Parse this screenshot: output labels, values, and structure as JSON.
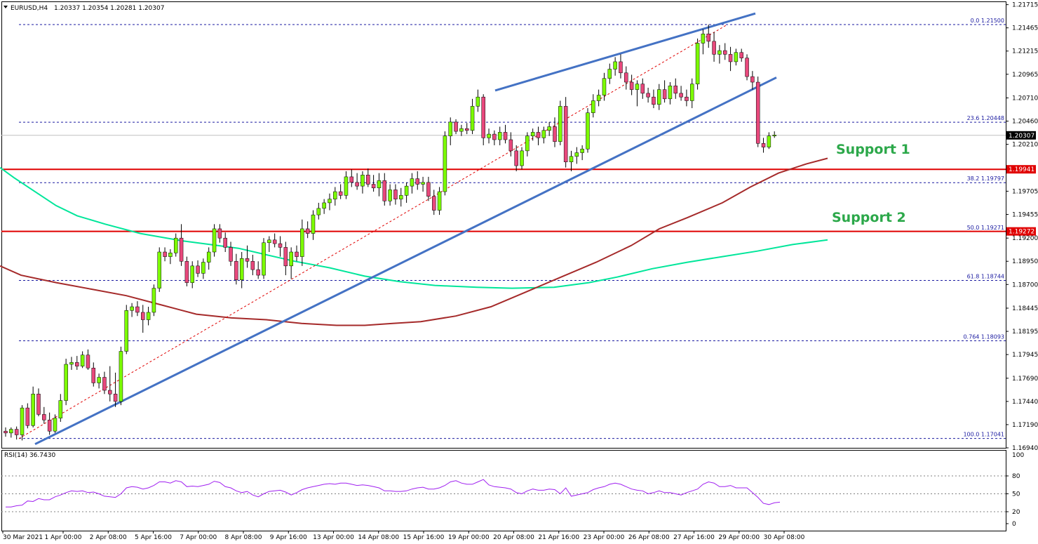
{
  "header": {
    "symbol": "EURUSD,H4",
    "ohlc": "1.20337 1.20354 1.20281 1.20307"
  },
  "rsi": {
    "label": "RSI(14) 36.7430",
    "levels": [
      80,
      50,
      20
    ],
    "axis_ticks": [
      "80",
      "50",
      "20",
      "0"
    ],
    "axis_top": "100"
  },
  "colors": {
    "bull": "#7cfc00",
    "bear": "#e8487c",
    "wick": "#000000",
    "trendline": "#4472c4",
    "sma_fast": "#00e69a",
    "sma_slow": "#a52a2a",
    "hline": "#e00000",
    "fib_line": "#1a1aa0",
    "rsi_line": "#a020f0"
  },
  "annotations": {
    "support1": "Support 1",
    "support2": "Support 2"
  },
  "chart_data": {
    "type": "candlestick",
    "instrument": "EURUSD",
    "timeframe": "H4",
    "ylim": [
      1.1694,
      1.2175
    ],
    "price_ticks": [
      "1.21715",
      "1.21465",
      "1.21215",
      "1.20965",
      "1.20710",
      "1.20460",
      "1.20210",
      "1.19705",
      "1.19455",
      "1.19200",
      "1.18950",
      "1.18700",
      "1.18445",
      "1.18195",
      "1.17945",
      "1.17690",
      "1.17440",
      "1.17190",
      "1.16940"
    ],
    "x_labels": [
      "30 Mar 2021",
      "1 Apr 00:00",
      "2 Apr 08:00",
      "5 Apr 16:00",
      "7 Apr 00:00",
      "8 Apr 08:00",
      "9 Apr 16:00",
      "13 Apr 00:00",
      "14 Apr 08:00",
      "15 Apr 16:00",
      "19 Apr 00:00",
      "20 Apr 08:00",
      "21 Apr 16:00",
      "23 Apr 00:00",
      "26 Apr 08:00",
      "27 Apr 16:00",
      "29 Apr 00:00",
      "30 Apr 08:00"
    ],
    "current_price": "1.20307",
    "horizontal_levels": [
      {
        "price": 1.19941,
        "label": "1.19941"
      },
      {
        "price": 1.19272,
        "label": "1.19272"
      }
    ],
    "fibonacci": [
      {
        "level": "0.0",
        "price": 1.215,
        "label": "0.0 1.21500"
      },
      {
        "level": "23.6",
        "price": 1.20448,
        "label": "23.6 1.20448"
      },
      {
        "level": "38.2",
        "price": 1.19797,
        "label": "38.2 1.19797"
      },
      {
        "level": "50.0",
        "price": 1.19271,
        "label": "50.0 1.19271"
      },
      {
        "level": "61.8",
        "price": 1.18744,
        "label": "61.8 1.18744"
      },
      {
        "level": "76.4",
        "price": 1.18093,
        "label": "0.764 1.18093"
      },
      {
        "level": "100.0",
        "price": 1.17041,
        "label": "100.0 1.17041"
      }
    ],
    "candles": [
      [
        1.1712,
        1.1716,
        1.1706,
        1.171
      ],
      [
        1.171,
        1.1716,
        1.1705,
        1.1714
      ],
      [
        1.1714,
        1.1717,
        1.1703,
        1.1708
      ],
      [
        1.1708,
        1.174,
        1.1702,
        1.1737
      ],
      [
        1.1737,
        1.1742,
        1.1715,
        1.1718
      ],
      [
        1.1718,
        1.176,
        1.1716,
        1.1752
      ],
      [
        1.1752,
        1.1758,
        1.1728,
        1.173
      ],
      [
        1.173,
        1.1738,
        1.172,
        1.1724
      ],
      [
        1.1724,
        1.1732,
        1.1708,
        1.1712
      ],
      [
        1.1712,
        1.173,
        1.171,
        1.1726
      ],
      [
        1.1726,
        1.1752,
        1.1722,
        1.1745
      ],
      [
        1.1745,
        1.179,
        1.174,
        1.1784
      ],
      [
        1.1784,
        1.1792,
        1.1778,
        1.1786
      ],
      [
        1.1786,
        1.1793,
        1.1778,
        1.1782
      ],
      [
        1.1782,
        1.1798,
        1.178,
        1.1794
      ],
      [
        1.1794,
        1.18,
        1.1778,
        1.178
      ],
      [
        1.178,
        1.1786,
        1.176,
        1.1764
      ],
      [
        1.1764,
        1.1774,
        1.1758,
        1.177
      ],
      [
        1.177,
        1.1776,
        1.1752,
        1.1756
      ],
      [
        1.1756,
        1.1782,
        1.1744,
        1.1752
      ],
      [
        1.1752,
        1.1775,
        1.1738,
        1.1744
      ],
      [
        1.1744,
        1.1803,
        1.174,
        1.1798
      ],
      [
        1.1798,
        1.1848,
        1.1795,
        1.1842
      ],
      [
        1.1842,
        1.185,
        1.1835,
        1.1846
      ],
      [
        1.1846,
        1.1852,
        1.1836,
        1.184
      ],
      [
        1.184,
        1.1848,
        1.1818,
        1.1832
      ],
      [
        1.1832,
        1.1846,
        1.1826,
        1.184
      ],
      [
        1.184,
        1.187,
        1.1836,
        1.1866
      ],
      [
        1.1866,
        1.191,
        1.1862,
        1.1905
      ],
      [
        1.1905,
        1.191,
        1.1895,
        1.19
      ],
      [
        1.19,
        1.1908,
        1.1892,
        1.1904
      ],
      [
        1.1904,
        1.1925,
        1.19,
        1.192
      ],
      [
        1.192,
        1.1935,
        1.189,
        1.1895
      ],
      [
        1.1895,
        1.19,
        1.1868,
        1.1872
      ],
      [
        1.1872,
        1.1895,
        1.1866,
        1.189
      ],
      [
        1.189,
        1.1896,
        1.1878,
        1.1882
      ],
      [
        1.1882,
        1.1898,
        1.1876,
        1.1894
      ],
      [
        1.1894,
        1.191,
        1.1886,
        1.1905
      ],
      [
        1.1905,
        1.1935,
        1.19,
        1.193
      ],
      [
        1.193,
        1.1935,
        1.1915,
        1.192
      ],
      [
        1.192,
        1.1926,
        1.1905,
        1.191
      ],
      [
        1.191,
        1.1916,
        1.189,
        1.1895
      ],
      [
        1.1895,
        1.1903,
        1.187,
        1.1875
      ],
      [
        1.1875,
        1.1905,
        1.1866,
        1.1898
      ],
      [
        1.1898,
        1.1912,
        1.1888,
        1.1895
      ],
      [
        1.1895,
        1.1902,
        1.188,
        1.1886
      ],
      [
        1.1886,
        1.1895,
        1.1876,
        1.188
      ],
      [
        1.188,
        1.192,
        1.1876,
        1.1915
      ],
      [
        1.1915,
        1.1922,
        1.1905,
        1.1918
      ],
      [
        1.1918,
        1.1925,
        1.191,
        1.1914
      ],
      [
        1.1914,
        1.1922,
        1.19,
        1.191
      ],
      [
        1.191,
        1.1916,
        1.188,
        1.189
      ],
      [
        1.189,
        1.191,
        1.1876,
        1.1905
      ],
      [
        1.1905,
        1.1912,
        1.1895,
        1.19
      ],
      [
        1.19,
        1.194,
        1.189,
        1.193
      ],
      [
        1.193,
        1.1938,
        1.192,
        1.1925
      ],
      [
        1.1925,
        1.195,
        1.1918,
        1.1945
      ],
      [
        1.1945,
        1.1958,
        1.194,
        1.1952
      ],
      [
        1.1952,
        1.1962,
        1.1946,
        1.1958
      ],
      [
        1.1958,
        1.1968,
        1.195,
        1.1962
      ],
      [
        1.1962,
        1.1975,
        1.1955,
        1.197
      ],
      [
        1.197,
        1.1978,
        1.1962,
        1.1966
      ],
      [
        1.1966,
        1.1992,
        1.1962,
        1.1986
      ],
      [
        1.1986,
        1.1994,
        1.1975,
        1.198
      ],
      [
        1.198,
        1.199,
        1.1972,
        1.1976
      ],
      [
        1.1976,
        1.1992,
        1.1968,
        1.1988
      ],
      [
        1.1988,
        1.1995,
        1.1975,
        1.1978
      ],
      [
        1.1978,
        1.1988,
        1.197,
        1.1974
      ],
      [
        1.1974,
        1.199,
        1.1965,
        1.1982
      ],
      [
        1.1982,
        1.199,
        1.1955,
        1.196
      ],
      [
        1.196,
        1.1978,
        1.1955,
        1.1972
      ],
      [
        1.1972,
        1.1978,
        1.1956,
        1.1962
      ],
      [
        1.1962,
        1.1974,
        1.1954,
        1.1966
      ],
      [
        1.1966,
        1.198,
        1.1958,
        1.1976
      ],
      [
        1.1976,
        1.199,
        1.1968,
        1.1984
      ],
      [
        1.1984,
        1.1992,
        1.1972,
        1.1978
      ],
      [
        1.1978,
        1.1986,
        1.197,
        1.198
      ],
      [
        1.198,
        1.1986,
        1.196,
        1.1965
      ],
      [
        1.1965,
        1.1972,
        1.1945,
        1.195
      ],
      [
        1.195,
        1.1975,
        1.1945,
        1.197
      ],
      [
        1.197,
        1.2035,
        1.1966,
        1.203
      ],
      [
        1.203,
        1.205,
        1.202,
        1.2045
      ],
      [
        1.2045,
        1.2048,
        1.2032,
        1.2035
      ],
      [
        1.2035,
        1.2042,
        1.203,
        1.2038
      ],
      [
        1.2038,
        1.2044,
        1.2032,
        1.2036
      ],
      [
        1.2036,
        1.207,
        1.2032,
        1.2062
      ],
      [
        1.2062,
        1.208,
        1.2056,
        1.2072
      ],
      [
        1.2072,
        1.2075,
        1.202,
        1.2028
      ],
      [
        1.2028,
        1.2038,
        1.2022,
        1.2032
      ],
      [
        1.2032,
        1.2036,
        1.202,
        1.2026
      ],
      [
        1.2026,
        1.204,
        1.202,
        1.2034
      ],
      [
        1.2034,
        1.2042,
        1.2022,
        1.2026
      ],
      [
        1.2026,
        1.2034,
        1.2008,
        1.2014
      ],
      [
        1.2014,
        1.202,
        1.1992,
        1.1998
      ],
      [
        1.1998,
        1.2018,
        1.1994,
        1.2014
      ],
      [
        1.2014,
        1.2034,
        1.2008,
        1.203
      ],
      [
        1.203,
        1.2038,
        1.2025,
        1.2034
      ],
      [
        1.2034,
        1.204,
        1.202,
        1.2028
      ],
      [
        1.2028,
        1.204,
        1.2022,
        1.2036
      ],
      [
        1.2036,
        1.2045,
        1.203,
        1.204
      ],
      [
        1.204,
        1.205,
        1.2018,
        1.2024
      ],
      [
        1.2024,
        1.2068,
        1.202,
        1.2062
      ],
      [
        1.2062,
        1.2072,
        1.1996,
        1.2002
      ],
      [
        1.2002,
        1.2014,
        1.1992,
        1.2008
      ],
      [
        1.2008,
        1.2018,
        1.2,
        1.2012
      ],
      [
        1.2012,
        1.202,
        1.2004,
        1.2016
      ],
      [
        1.2016,
        1.206,
        1.2012,
        1.2055
      ],
      [
        1.2055,
        1.2075,
        1.205,
        1.2068
      ],
      [
        1.2068,
        1.208,
        1.2062,
        1.2074
      ],
      [
        1.2074,
        1.2098,
        1.2068,
        1.2092
      ],
      [
        1.2092,
        1.2108,
        1.2086,
        1.2102
      ],
      [
        1.2102,
        1.2115,
        1.2095,
        1.211
      ],
      [
        1.211,
        1.2118,
        1.2092,
        1.2098
      ],
      [
        1.2098,
        1.2105,
        1.208,
        1.2088
      ],
      [
        1.2088,
        1.2096,
        1.2074,
        1.208
      ],
      [
        1.208,
        1.209,
        1.2062,
        1.2086
      ],
      [
        1.2086,
        1.2092,
        1.207,
        1.2076
      ],
      [
        1.2076,
        1.2082,
        1.2066,
        1.2072
      ],
      [
        1.2072,
        1.208,
        1.206,
        1.2064
      ],
      [
        1.2064,
        1.2086,
        1.2058,
        1.208
      ],
      [
        1.208,
        1.209,
        1.2066,
        1.207
      ],
      [
        1.207,
        1.2088,
        1.2064,
        1.2084
      ],
      [
        1.2084,
        1.2092,
        1.207,
        1.2076
      ],
      [
        1.2076,
        1.2084,
        1.2068,
        1.2072
      ],
      [
        1.2072,
        1.208,
        1.2062,
        1.2068
      ],
      [
        1.2068,
        1.2092,
        1.206,
        1.2086
      ],
      [
        1.2086,
        1.2135,
        1.208,
        1.213
      ],
      [
        1.213,
        1.2145,
        1.2118,
        1.214
      ],
      [
        1.214,
        1.215,
        1.2125,
        1.2132
      ],
      [
        1.2132,
        1.2142,
        1.211,
        1.2118
      ],
      [
        1.2118,
        1.2128,
        1.2108,
        1.2122
      ],
      [
        1.2122,
        1.213,
        1.2112,
        1.2118
      ],
      [
        1.2118,
        1.2126,
        1.21,
        1.211
      ],
      [
        1.211,
        1.2124,
        1.2106,
        1.212
      ],
      [
        1.212,
        1.2124,
        1.211,
        1.2114
      ],
      [
        1.2114,
        1.2118,
        1.209,
        1.2094
      ],
      [
        1.2094,
        1.21,
        1.208,
        1.2088
      ],
      [
        1.2088,
        1.2094,
        1.2018,
        1.2022
      ],
      [
        1.2022,
        1.2028,
        1.2012,
        1.2018
      ],
      [
        1.2018,
        1.2034,
        1.2016,
        1.203
      ],
      [
        1.203,
        1.2035,
        1.2028,
        1.2031
      ]
    ],
    "sma_fast_points": [
      [
        0,
        1.1996
      ],
      [
        20,
        1.1985
      ],
      [
        50,
        1.197
      ],
      [
        80,
        1.1955
      ],
      [
        110,
        1.1944
      ],
      [
        150,
        1.1935
      ],
      [
        200,
        1.1925
      ],
      [
        260,
        1.1917
      ],
      [
        300,
        1.1913
      ],
      [
        340,
        1.1909
      ],
      [
        380,
        1.1902
      ],
      [
        420,
        1.1895
      ],
      [
        470,
        1.1888
      ],
      [
        520,
        1.1879
      ],
      [
        570,
        1.1873
      ],
      [
        620,
        1.1869
      ],
      [
        680,
        1.1867
      ],
      [
        730,
        1.1866
      ],
      [
        790,
        1.1867
      ],
      [
        840,
        1.1872
      ],
      [
        880,
        1.1878
      ],
      [
        930,
        1.1887
      ],
      [
        980,
        1.1894
      ],
      [
        1030,
        1.19
      ],
      [
        1080,
        1.1906
      ],
      [
        1130,
        1.1913
      ],
      [
        1180,
        1.1918
      ]
    ],
    "sma_slow_points": [
      [
        0,
        1.189
      ],
      [
        30,
        1.188
      ],
      [
        80,
        1.1872
      ],
      [
        130,
        1.1865
      ],
      [
        180,
        1.1858
      ],
      [
        230,
        1.1848
      ],
      [
        280,
        1.1838
      ],
      [
        330,
        1.1834
      ],
      [
        380,
        1.1832
      ],
      [
        430,
        1.1828
      ],
      [
        480,
        1.1826
      ],
      [
        520,
        1.1826
      ],
      [
        560,
        1.1828
      ],
      [
        600,
        1.183
      ],
      [
        650,
        1.1836
      ],
      [
        700,
        1.1846
      ],
      [
        750,
        1.1862
      ],
      [
        800,
        1.1878
      ],
      [
        850,
        1.1894
      ],
      [
        900,
        1.1912
      ],
      [
        940,
        1.193
      ],
      [
        980,
        1.1942
      ],
      [
        1030,
        1.1958
      ],
      [
        1070,
        1.1975
      ],
      [
        1110,
        1.199
      ],
      [
        1150,
        1.2
      ],
      [
        1180,
        1.2006
      ]
    ],
    "trendlines": [
      {
        "name": "lower-support-trendline",
        "points": [
          [
            50,
            1.1698
          ],
          [
            1107,
            1.2093
          ]
        ]
      },
      {
        "name": "upper-channel-trendline",
        "points": [
          [
            706,
            1.2079
          ],
          [
            1077,
            1.2162
          ]
        ]
      },
      {
        "name": "fib-swing-line",
        "points": [
          [
            27,
            1.1704
          ],
          [
            1037,
            1.215
          ]
        ]
      }
    ],
    "rsi_values": [
      28,
      28,
      30,
      31,
      38,
      37,
      42,
      40,
      40,
      45,
      48,
      52,
      55,
      54,
      55,
      52,
      53,
      50,
      46,
      45,
      44,
      50,
      60,
      62,
      61,
      58,
      60,
      64,
      70,
      70,
      68,
      72,
      70,
      62,
      63,
      62,
      64,
      66,
      71,
      69,
      62,
      60,
      55,
      52,
      54,
      48,
      45,
      50,
      54,
      55,
      56,
      53,
      48,
      52,
      57,
      60,
      62,
      64,
      66,
      67,
      66,
      68,
      68,
      66,
      64,
      65,
      64,
      62,
      60,
      55,
      55,
      54,
      54,
      55,
      58,
      60,
      61,
      58,
      58,
      60,
      64,
      70,
      72,
      68,
      66,
      66,
      70,
      74,
      65,
      62,
      61,
      60,
      58,
      52,
      50,
      55,
      58,
      56,
      56,
      58,
      57,
      50,
      60,
      46,
      48,
      50,
      52,
      57,
      60,
      62,
      66,
      68,
      66,
      62,
      58,
      56,
      55,
      50,
      52,
      55,
      52,
      52,
      50,
      48,
      52,
      55,
      58,
      66,
      70,
      68,
      62,
      62,
      64,
      60,
      60,
      60,
      52,
      44,
      34,
      32,
      35,
      36
    ]
  }
}
